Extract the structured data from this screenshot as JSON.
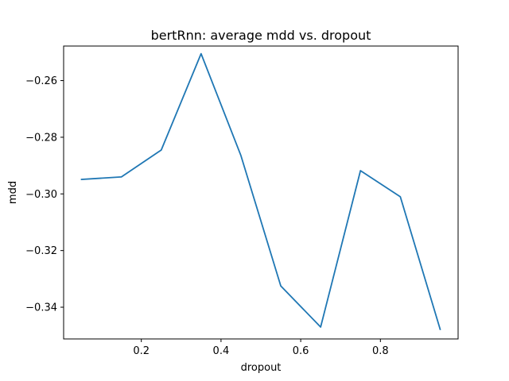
{
  "chart_data": {
    "type": "line",
    "title": "bertRnn: average mdd vs. dropout",
    "xlabel": "dropout",
    "ylabel": "mdd",
    "xlim": [
      0.005,
      0.995
    ],
    "ylim": [
      -0.3512,
      -0.2478
    ],
    "xticks": [
      {
        "value": 0.2,
        "label": "0.2"
      },
      {
        "value": 0.4,
        "label": "0.4"
      },
      {
        "value": 0.6,
        "label": "0.6"
      },
      {
        "value": 0.8,
        "label": "0.8"
      }
    ],
    "yticks": [
      {
        "value": -0.26,
        "label": "−0.26"
      },
      {
        "value": -0.28,
        "label": "−0.28"
      },
      {
        "value": -0.3,
        "label": "−0.30"
      },
      {
        "value": -0.32,
        "label": "−0.32"
      },
      {
        "value": -0.34,
        "label": "−0.34"
      }
    ],
    "grid": false,
    "series": [
      {
        "color": "#1f77b4",
        "x": [
          0.05,
          0.15,
          0.25,
          0.35,
          0.45,
          0.55,
          0.65,
          0.75,
          0.85,
          0.95
        ],
        "y": [
          -0.2949,
          -0.294,
          -0.2845,
          -0.2505,
          -0.2865,
          -0.3325,
          -0.347,
          -0.2918,
          -0.301,
          -0.3478
        ]
      }
    ]
  }
}
